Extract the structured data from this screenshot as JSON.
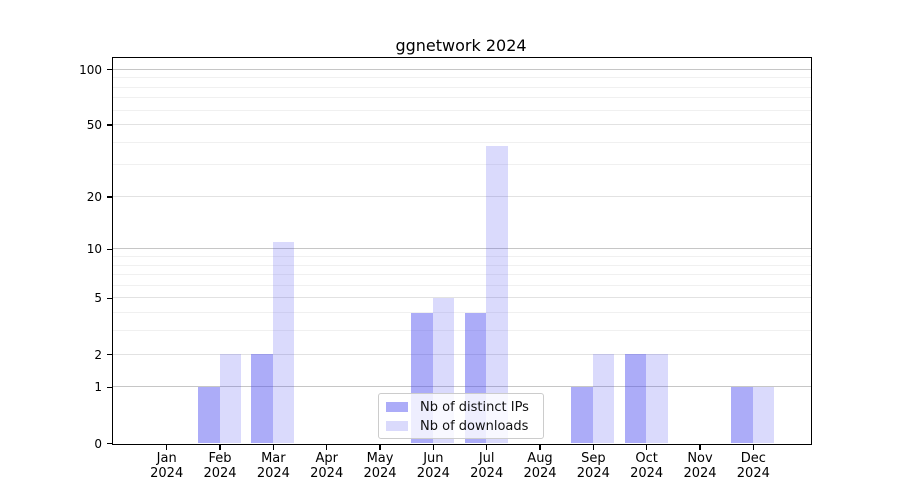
{
  "chart_data": {
    "type": "bar",
    "title": "ggnetwork 2024",
    "categories": [
      "Jan",
      "Feb",
      "Mar",
      "Apr",
      "May",
      "Jun",
      "Jul",
      "Aug",
      "Sep",
      "Oct",
      "Nov",
      "Dec"
    ],
    "x_year": "2024",
    "series": [
      {
        "name": "Nb of distinct IPs",
        "color": "rgba(70,70,240,0.45)",
        "values": [
          0,
          1,
          2,
          0,
          0,
          4,
          4,
          0,
          1,
          2,
          0,
          1
        ]
      },
      {
        "name": "Nb of downloads",
        "color": "rgba(70,70,240,0.2)",
        "values": [
          0,
          2,
          11,
          0,
          0,
          5,
          38,
          0,
          2,
          2,
          0,
          1
        ]
      }
    ],
    "y_scale": "log10(1+v)",
    "y_ticks": [
      0,
      1,
      2,
      5,
      10,
      20,
      50,
      100
    ],
    "y_major_gridlines": [
      1,
      10,
      100
    ],
    "y_mid_gridlines": [
      2,
      5,
      20,
      50
    ],
    "y_minor_gridlines": [
      3,
      4,
      6,
      7,
      8,
      9,
      30,
      40,
      60,
      70,
      80,
      90
    ],
    "ylim": [
      0,
      115
    ],
    "xlabel": "",
    "ylabel": "",
    "grid": true,
    "legend_position": "lower center"
  },
  "colors": {
    "grid_major": "#c6c6c6",
    "grid_mid": "#e2e2e2",
    "grid_minor": "#f0f0f0",
    "spine": "#000000",
    "legend_border": "#cccccc",
    "background": "#ffffff"
  }
}
